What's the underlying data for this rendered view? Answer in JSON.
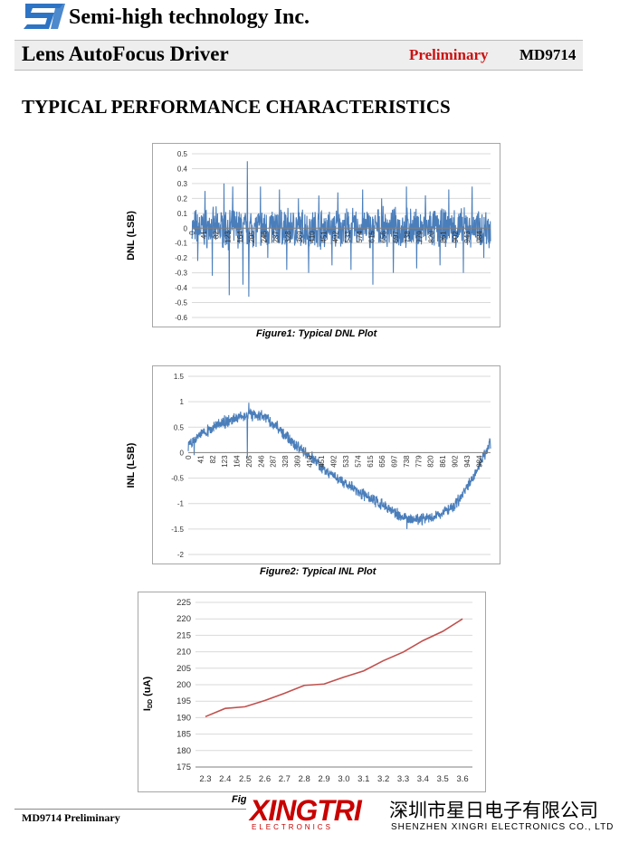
{
  "header": {
    "company": "Semi-high technology Inc.",
    "doc_title": "Lens AutoFocus Driver",
    "status": "Preliminary",
    "doc_number": "MD9714"
  },
  "section_title": "TYPICAL PERFORMANCE CHARACTERISTICS",
  "footer": {
    "text": "MD9714 Preliminary"
  },
  "watermark": {
    "logo": "XINGTRI",
    "logo_sub": "ELECTRONICS",
    "company_cn": "深圳市星日电子有限公司",
    "company_en": "SHENZHEN XINGRI ELECTRONICS CO., LTD"
  },
  "colors": {
    "series": "#4a7ebb",
    "idd_line": "#c0504d",
    "status": "#cc1111"
  },
  "chart_data": [
    {
      "type": "line",
      "title": "",
      "caption": "Figure1: Typical  DNL Plot",
      "ylabel": "DNL (LSB)",
      "xlabel": "",
      "ylim": [
        -0.6,
        0.5
      ],
      "yticks": [
        "0.5",
        "0.4",
        "0.3",
        "0.2",
        "0.1",
        "0",
        "-0.1",
        "-0.2",
        "-0.3",
        "-0.4",
        "-0.5",
        "-0.6"
      ],
      "xticks": [
        "0",
        "41",
        "82",
        "123",
        "164",
        "205",
        "246",
        "287",
        "328",
        "369",
        "410",
        "451",
        "492",
        "533",
        "574",
        "615",
        "656",
        "697",
        "738",
        "779",
        "820",
        "861",
        "902",
        "943",
        "984"
      ],
      "xlim": [
        0,
        1023
      ],
      "grid": "horizontal",
      "legend": "none",
      "noise": {
        "points": 1024,
        "spread": 0.1,
        "seed": 7
      },
      "spikes": [
        [
          20,
          -0.22
        ],
        [
          45,
          0.25
        ],
        [
          70,
          -0.32
        ],
        [
          110,
          0.3
        ],
        [
          128,
          -0.45
        ],
        [
          140,
          0.28
        ],
        [
          175,
          -0.38
        ],
        [
          190,
          0.45
        ],
        [
          195,
          -0.46
        ],
        [
          235,
          0.28
        ],
        [
          260,
          -0.2
        ],
        [
          300,
          0.26
        ],
        [
          325,
          -0.28
        ],
        [
          365,
          0.2
        ],
        [
          400,
          -0.3
        ],
        [
          435,
          0.22
        ],
        [
          480,
          -0.25
        ],
        [
          500,
          0.24
        ],
        [
          545,
          -0.28
        ],
        [
          585,
          0.26
        ],
        [
          620,
          -0.38
        ],
        [
          650,
          0.2
        ],
        [
          690,
          -0.3
        ],
        [
          735,
          0.28
        ],
        [
          770,
          -0.27
        ],
        [
          800,
          0.22
        ],
        [
          850,
          -0.25
        ],
        [
          880,
          0.26
        ],
        [
          930,
          -0.3
        ],
        [
          960,
          0.28
        ],
        [
          1000,
          -0.2
        ]
      ]
    },
    {
      "type": "line",
      "title": "",
      "caption": "Figure2: Typical INL Plot",
      "ylabel": "INL (LSB)",
      "xlabel": "",
      "ylim": [
        -2,
        1.5
      ],
      "yticks": [
        "1.5",
        "1",
        "0.5",
        "0",
        "-0.5",
        "-1",
        "-1.5",
        "-2"
      ],
      "xticks": [
        "0",
        "41",
        "82",
        "123",
        "164",
        "205",
        "246",
        "287",
        "328",
        "369",
        "410",
        "451",
        "492",
        "533",
        "574",
        "615",
        "656",
        "697",
        "738",
        "779",
        "820",
        "861",
        "902",
        "943",
        "984"
      ],
      "xlim": [
        0,
        1023
      ],
      "grid": "horizontal",
      "legend": "none",
      "noise": {
        "points": 1024,
        "spread": 0.09,
        "seed": 13
      },
      "trend": [
        [
          0,
          0.1
        ],
        [
          40,
          0.35
        ],
        [
          100,
          0.55
        ],
        [
          160,
          0.68
        ],
        [
          205,
          0.75
        ],
        [
          260,
          0.7
        ],
        [
          310,
          0.45
        ],
        [
          350,
          0.2
        ],
        [
          410,
          -0.05
        ],
        [
          470,
          -0.4
        ],
        [
          530,
          -0.6
        ],
        [
          600,
          -0.85
        ],
        [
          660,
          -1.05
        ],
        [
          720,
          -1.25
        ],
        [
          780,
          -1.32
        ],
        [
          840,
          -1.25
        ],
        [
          900,
          -1.05
        ],
        [
          960,
          -0.55
        ],
        [
          1023,
          0.2
        ]
      ],
      "spikes": [
        [
          20,
          -0.05
        ],
        [
          205,
          0.98
        ],
        [
          200,
          -0.1
        ],
        [
          740,
          -1.5
        ],
        [
          1020,
          0.28
        ]
      ]
    },
    {
      "type": "line",
      "title": "",
      "caption": "Fig",
      "ylabel": "IDD (uA)",
      "ylabel_main": "I",
      "ylabel_sub": "DD",
      "ylabel_rest": " (uA)",
      "xlabel": "",
      "ylim": [
        175,
        225
      ],
      "yticks": [
        "225",
        "220",
        "215",
        "210",
        "205",
        "200",
        "195",
        "190",
        "185",
        "180",
        "175"
      ],
      "categories": [
        "2.3",
        "2.4",
        "2.5",
        "2.6",
        "2.7",
        "2.8",
        "2.9",
        "3.0",
        "3.1",
        "3.2",
        "3.3",
        "3.4",
        "3.5",
        "3.6"
      ],
      "values": [
        190.3,
        192.8,
        193.3,
        195.2,
        197.4,
        199.8,
        200.2,
        202.3,
        204.2,
        207.3,
        209.9,
        213.4,
        216.2,
        220
      ],
      "grid": "horizontal",
      "legend": "none"
    }
  ]
}
